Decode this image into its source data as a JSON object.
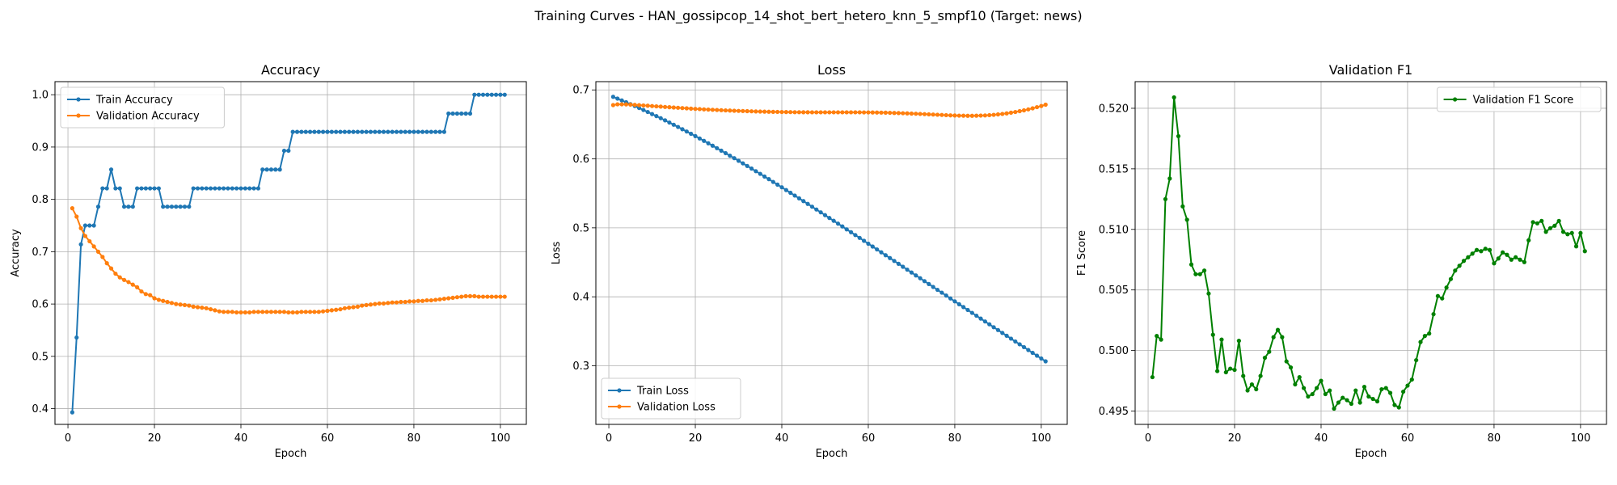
{
  "figure": {
    "suptitle": "Training Curves - HAN_gossipcop_14_shot_bert_hetero_knn_5_smpf10 (Target: news)"
  },
  "colors": {
    "blue": "#1f77b4",
    "orange": "#ff7f0e",
    "green": "#008000",
    "grid": "#b0b0b0"
  },
  "chart_data": [
    {
      "type": "line",
      "title": "Accuracy",
      "xlabel": "Epoch",
      "ylabel": "Accuracy",
      "xlim": [
        -3,
        106
      ],
      "ylim": [
        0.37,
        1.025
      ],
      "xticks": [
        0,
        20,
        40,
        60,
        80,
        100
      ],
      "yticks": [
        0.4,
        0.5,
        0.6,
        0.7,
        0.8,
        0.9,
        1.0
      ],
      "ytick_decimals": 1,
      "grid": true,
      "legend_position": "upper-left",
      "series": [
        {
          "name": "Train Accuracy",
          "color": "#1f77b4",
          "x_start": 1,
          "values": [
            0.393,
            0.536,
            0.714,
            0.75,
            0.75,
            0.75,
            0.786,
            0.821,
            0.821,
            0.857,
            0.821,
            0.821,
            0.786,
            0.786,
            0.786,
            0.821,
            0.821,
            0.821,
            0.821,
            0.821,
            0.821,
            0.786,
            0.786,
            0.786,
            0.786,
            0.786,
            0.786,
            0.786,
            0.821,
            0.821,
            0.821,
            0.821,
            0.821,
            0.821,
            0.821,
            0.821,
            0.821,
            0.821,
            0.821,
            0.821,
            0.821,
            0.821,
            0.821,
            0.821,
            0.857,
            0.857,
            0.857,
            0.857,
            0.857,
            0.893,
            0.893,
            0.929,
            0.929,
            0.929,
            0.929,
            0.929,
            0.929,
            0.929,
            0.929,
            0.929,
            0.929,
            0.929,
            0.929,
            0.929,
            0.929,
            0.929,
            0.929,
            0.929,
            0.929,
            0.929,
            0.929,
            0.929,
            0.929,
            0.929,
            0.929,
            0.929,
            0.929,
            0.929,
            0.929,
            0.929,
            0.929,
            0.929,
            0.929,
            0.929,
            0.929,
            0.929,
            0.929,
            0.964,
            0.964,
            0.964,
            0.964,
            0.964,
            0.964,
            1.0,
            1.0,
            1.0,
            1.0,
            1.0,
            1.0,
            1.0,
            1.0
          ]
        },
        {
          "name": "Validation Accuracy",
          "color": "#ff7f0e",
          "x_start": 1,
          "values": [
            0.783,
            0.767,
            0.745,
            0.73,
            0.72,
            0.71,
            0.7,
            0.69,
            0.678,
            0.668,
            0.658,
            0.651,
            0.646,
            0.642,
            0.637,
            0.632,
            0.624,
            0.619,
            0.617,
            0.611,
            0.608,
            0.606,
            0.604,
            0.602,
            0.6,
            0.599,
            0.598,
            0.597,
            0.595,
            0.594,
            0.593,
            0.592,
            0.59,
            0.588,
            0.586,
            0.585,
            0.585,
            0.585,
            0.584,
            0.584,
            0.584,
            0.584,
            0.585,
            0.585,
            0.585,
            0.585,
            0.585,
            0.585,
            0.585,
            0.585,
            0.584,
            0.584,
            0.584,
            0.585,
            0.585,
            0.585,
            0.585,
            0.585,
            0.586,
            0.587,
            0.588,
            0.589,
            0.59,
            0.592,
            0.593,
            0.594,
            0.595,
            0.597,
            0.598,
            0.599,
            0.6,
            0.601,
            0.601,
            0.602,
            0.603,
            0.603,
            0.604,
            0.604,
            0.605,
            0.605,
            0.606,
            0.606,
            0.607,
            0.607,
            0.608,
            0.609,
            0.61,
            0.611,
            0.612,
            0.613,
            0.614,
            0.615,
            0.615,
            0.615,
            0.614,
            0.614,
            0.614,
            0.614,
            0.614,
            0.614,
            0.614
          ]
        }
      ]
    },
    {
      "type": "line",
      "title": "Loss",
      "xlabel": "Epoch",
      "ylabel": "Loss",
      "xlim": [
        -3,
        106
      ],
      "ylim": [
        0.215,
        0.712
      ],
      "xticks": [
        0,
        20,
        40,
        60,
        80,
        100
      ],
      "yticks": [
        0.3,
        0.4,
        0.5,
        0.6,
        0.7
      ],
      "ytick_decimals": 1,
      "grid": true,
      "legend_position": "lower-left",
      "series": [
        {
          "name": "Train Loss",
          "color": "#1f77b4",
          "x_start": 1,
          "values": [
            0.69,
            0.6874,
            0.6848,
            0.6821,
            0.6794,
            0.6766,
            0.6738,
            0.6709,
            0.668,
            0.665,
            0.662,
            0.659,
            0.6559,
            0.6527,
            0.6495,
            0.6463,
            0.643,
            0.6397,
            0.6364,
            0.633,
            0.6296,
            0.6261,
            0.6226,
            0.6191,
            0.6155,
            0.6119,
            0.6083,
            0.6046,
            0.601,
            0.5973,
            0.5935,
            0.5897,
            0.586,
            0.5821,
            0.5783,
            0.5744,
            0.5706,
            0.5666,
            0.5627,
            0.5588,
            0.5548,
            0.5508,
            0.5468,
            0.5428,
            0.5388,
            0.5347,
            0.5307,
            0.5266,
            0.5225,
            0.5184,
            0.5143,
            0.5102,
            0.5061,
            0.502,
            0.4978,
            0.4937,
            0.4895,
            0.4854,
            0.4812,
            0.477,
            0.4729,
            0.4687,
            0.4645,
            0.4603,
            0.4562,
            0.452,
            0.4478,
            0.4436,
            0.4394,
            0.4352,
            0.431,
            0.4269,
            0.4227,
            0.4185,
            0.4143,
            0.4101,
            0.406,
            0.4018,
            0.3976,
            0.3934,
            0.3892,
            0.3851,
            0.3809,
            0.3767,
            0.3726,
            0.3684,
            0.3642,
            0.3601,
            0.3559,
            0.3518,
            0.3476,
            0.3435,
            0.3393,
            0.3352,
            0.3311,
            0.327,
            0.3228,
            0.3187,
            0.3146,
            0.3105,
            0.3064
          ]
        },
        {
          "name": "Validation Loss",
          "color": "#ff7f0e",
          "x_start": 1,
          "values": [
            0.678,
            0.6791,
            0.6791,
            0.679,
            0.6787,
            0.6783,
            0.6779,
            0.6775,
            0.6771,
            0.6766,
            0.6762,
            0.6758,
            0.6753,
            0.6749,
            0.6745,
            0.6741,
            0.6737,
            0.6733,
            0.6729,
            0.6725,
            0.6722,
            0.6718,
            0.6715,
            0.6712,
            0.6709,
            0.6706,
            0.6703,
            0.6701,
            0.6698,
            0.6696,
            0.6694,
            0.6692,
            0.669,
            0.6688,
            0.6686,
            0.6685,
            0.6683,
            0.6682,
            0.6681,
            0.668,
            0.6679,
            0.6678,
            0.6677,
            0.6677,
            0.6676,
            0.6676,
            0.6675,
            0.6675,
            0.6675,
            0.6675,
            0.6675,
            0.6675,
            0.6675,
            0.6675,
            0.6675,
            0.6675,
            0.6675,
            0.6675,
            0.6674,
            0.6674,
            0.6673,
            0.6672,
            0.6671,
            0.667,
            0.6668,
            0.6666,
            0.6664,
            0.6662,
            0.666,
            0.6657,
            0.6655,
            0.6652,
            0.6649,
            0.6646,
            0.6643,
            0.664,
            0.6637,
            0.6634,
            0.6631,
            0.6629,
            0.6627,
            0.6626,
            0.6625,
            0.6625,
            0.6626,
            0.6628,
            0.663,
            0.6634,
            0.6639,
            0.6645,
            0.6652,
            0.666,
            0.667,
            0.668,
            0.6692,
            0.6704,
            0.6718,
            0.6733,
            0.675,
            0.6767,
            0.6786
          ]
        }
      ]
    },
    {
      "type": "line",
      "title": "Validation F1",
      "xlabel": "Epoch",
      "ylabel": "F1 Score",
      "xlim": [
        -3,
        106
      ],
      "ylim": [
        0.4939,
        0.5222
      ],
      "xticks": [
        0,
        20,
        40,
        60,
        80,
        100
      ],
      "yticks": [
        0.495,
        0.5,
        0.505,
        0.51,
        0.515,
        0.52
      ],
      "ytick_decimals": 3,
      "grid": true,
      "legend_position": "upper-right",
      "series": [
        {
          "name": "Validation F1 Score",
          "color": "#008000",
          "x_start": 1,
          "values": [
            0.4978,
            0.5012,
            0.5009,
            0.5125,
            0.5142,
            0.5209,
            0.5177,
            0.5119,
            0.5108,
            0.5071,
            0.5063,
            0.5063,
            0.5066,
            0.5047,
            0.5013,
            0.4983,
            0.5009,
            0.4982,
            0.4985,
            0.4984,
            0.5008,
            0.4979,
            0.4967,
            0.4972,
            0.4968,
            0.4979,
            0.4994,
            0.4999,
            0.5011,
            0.5017,
            0.5011,
            0.4991,
            0.4986,
            0.4972,
            0.4978,
            0.4969,
            0.4962,
            0.4964,
            0.4969,
            0.4975,
            0.4964,
            0.4967,
            0.4952,
            0.4957,
            0.4961,
            0.4959,
            0.4956,
            0.4967,
            0.4957,
            0.497,
            0.4962,
            0.496,
            0.4958,
            0.4968,
            0.4969,
            0.4965,
            0.4955,
            0.4953,
            0.4966,
            0.4971,
            0.4976,
            0.4992,
            0.5007,
            0.5012,
            0.5014,
            0.503,
            0.5045,
            0.5043,
            0.5052,
            0.5059,
            0.5066,
            0.507,
            0.5074,
            0.5077,
            0.508,
            0.5083,
            0.5082,
            0.5084,
            0.5083,
            0.5072,
            0.5076,
            0.5081,
            0.5079,
            0.5075,
            0.5077,
            0.5075,
            0.5073,
            0.5091,
            0.5106,
            0.5105,
            0.5107,
            0.5098,
            0.5101,
            0.5103,
            0.5107,
            0.5098,
            0.5096,
            0.5097,
            0.5086,
            0.5097,
            0.5082
          ]
        }
      ]
    }
  ]
}
